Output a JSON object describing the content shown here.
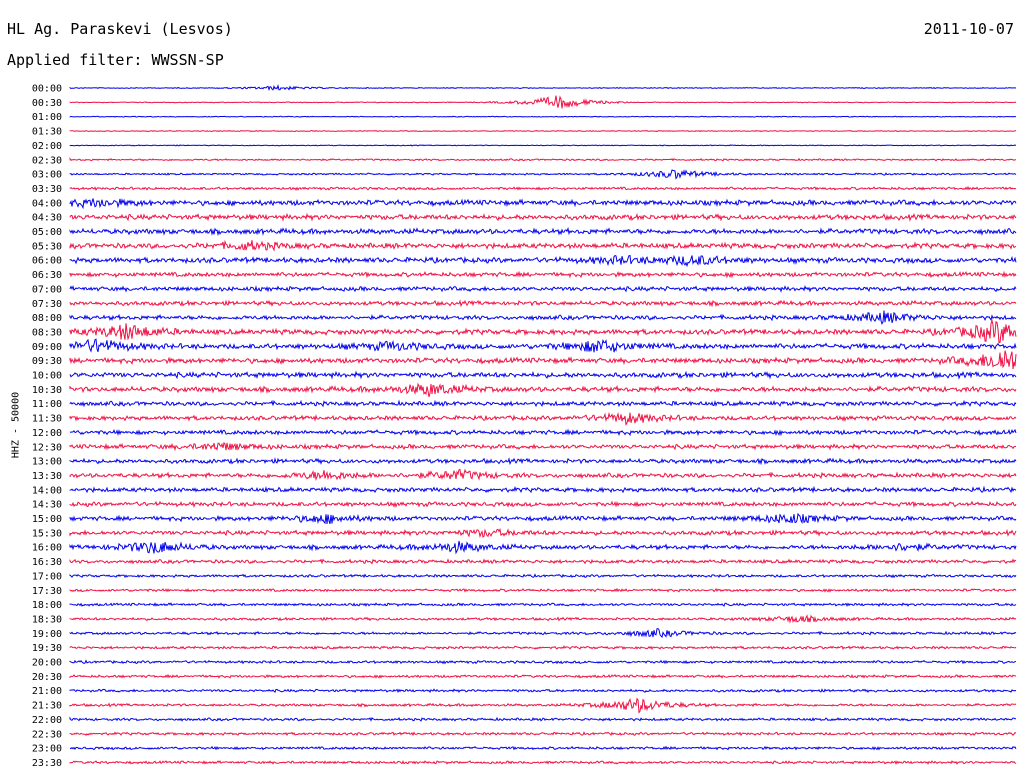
{
  "header": {
    "station": "HL Ag. Paraskevi (Lesvos)",
    "date": "2011-10-07",
    "filter": "Applied filter: WWSSN-SP"
  },
  "colors": {
    "blue": "#0000ee",
    "red": "#ee1144"
  },
  "chart_data": {
    "type": "line",
    "title": "HL Ag. Paraskevi (Lesvos)",
    "ylabel": "HHZ - 50000",
    "trace_color_sequence": [
      "blue",
      "red"
    ],
    "row_labels": [
      "00:00",
      "00:30",
      "01:00",
      "01:30",
      "02:00",
      "02:30",
      "03:00",
      "03:30",
      "04:00",
      "04:30",
      "05:00",
      "05:30",
      "06:00",
      "06:30",
      "07:00",
      "07:30",
      "08:00",
      "08:30",
      "09:00",
      "09:30",
      "10:00",
      "10:30",
      "11:00",
      "11:30",
      "12:00",
      "12:30",
      "13:00",
      "13:30",
      "14:00",
      "14:30",
      "15:00",
      "15:30",
      "16:00",
      "16:30",
      "17:00",
      "17:30",
      "18:00",
      "18:30",
      "19:00",
      "19:30",
      "20:00",
      "20:30",
      "21:00",
      "21:30",
      "22:00",
      "22:30",
      "23:00",
      "23:30"
    ],
    "noise_level": [
      1,
      1,
      1,
      1,
      1,
      2,
      2,
      3,
      6,
      6,
      6,
      6,
      6,
      5,
      5,
      5,
      5,
      6,
      6,
      6,
      6,
      6,
      5,
      5,
      5,
      5,
      5,
      5,
      5,
      5,
      5,
      5,
      5,
      4,
      3,
      3,
      3,
      3,
      3,
      3,
      3,
      3,
      3,
      3,
      3,
      3,
      3,
      3
    ],
    "events": [
      {
        "row": 0,
        "pos": 0.22,
        "amp": 4
      },
      {
        "row": 1,
        "pos": 0.516,
        "amp": 14
      },
      {
        "row": 6,
        "pos": 0.64,
        "amp": 9
      },
      {
        "row": 8,
        "pos": 0.03,
        "amp": 7
      },
      {
        "row": 11,
        "pos": 0.19,
        "amp": 7
      },
      {
        "row": 12,
        "pos": 0.58,
        "amp": 6
      },
      {
        "row": 12,
        "pos": 0.66,
        "amp": 9
      },
      {
        "row": 16,
        "pos": 0.86,
        "amp": 10
      },
      {
        "row": 17,
        "pos": 0.06,
        "amp": 15
      },
      {
        "row": 17,
        "pos": 0.98,
        "amp": 22
      },
      {
        "row": 18,
        "pos": 0.03,
        "amp": 12
      },
      {
        "row": 18,
        "pos": 0.34,
        "amp": 7
      },
      {
        "row": 18,
        "pos": 0.56,
        "amp": 12
      },
      {
        "row": 19,
        "pos": 0.99,
        "amp": 25
      },
      {
        "row": 21,
        "pos": 0.38,
        "amp": 11
      },
      {
        "row": 23,
        "pos": 0.59,
        "amp": 10
      },
      {
        "row": 25,
        "pos": 0.16,
        "amp": 7
      },
      {
        "row": 27,
        "pos": 0.27,
        "amp": 8
      },
      {
        "row": 27,
        "pos": 0.41,
        "amp": 9
      },
      {
        "row": 30,
        "pos": 0.27,
        "amp": 8
      },
      {
        "row": 30,
        "pos": 0.76,
        "amp": 9
      },
      {
        "row": 31,
        "pos": 0.44,
        "amp": 6
      },
      {
        "row": 32,
        "pos": 0.09,
        "amp": 12
      },
      {
        "row": 32,
        "pos": 0.41,
        "amp": 9
      },
      {
        "row": 32,
        "pos": 0.88,
        "amp": 6
      },
      {
        "row": 37,
        "pos": 0.77,
        "amp": 6
      },
      {
        "row": 38,
        "pos": 0.62,
        "amp": 7
      },
      {
        "row": 43,
        "pos": 0.6,
        "amp": 14
      }
    ]
  }
}
